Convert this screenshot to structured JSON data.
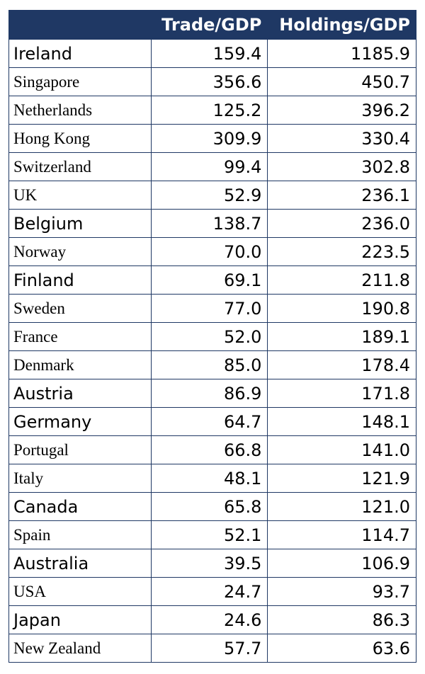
{
  "table": {
    "headers": [
      "Trade/GDP",
      "Holdings/GDP"
    ],
    "rows": [
      [
        "Ireland",
        "159.4",
        "1185.9"
      ],
      [
        "Singapore",
        "356.6",
        "450.7"
      ],
      [
        "Netherlands",
        "125.2",
        "396.2"
      ],
      [
        "Hong Kong",
        "309.9",
        "330.4"
      ],
      [
        "Switzerland",
        "99.4",
        "302.8"
      ],
      [
        "UK",
        "52.9",
        "236.1"
      ],
      [
        "Belgium",
        "138.7",
        "236.0"
      ],
      [
        "Norway",
        "70.0",
        "223.5"
      ],
      [
        "Finland",
        "69.1",
        "211.8"
      ],
      [
        "Sweden",
        "77.0",
        "190.8"
      ],
      [
        "France",
        "52.0",
        "189.1"
      ],
      [
        "Denmark",
        "85.0",
        "178.4"
      ],
      [
        "Austria",
        "86.9",
        "171.8"
      ],
      [
        "Germany",
        "64.7",
        "148.1"
      ],
      [
        "Portugal",
        "66.8",
        "141.0"
      ],
      [
        "Italy",
        "48.1",
        "121.9"
      ],
      [
        "Canada",
        "65.8",
        "121.0"
      ],
      [
        "Spain",
        "52.1",
        "114.7"
      ],
      [
        "Australia",
        "39.5",
        "106.9"
      ],
      [
        "USA",
        "24.7",
        "93.7"
      ],
      [
        "Japan",
        "24.6",
        "86.3"
      ],
      [
        "New Zealand",
        "57.7",
        "63.6"
      ]
    ]
  }
}
